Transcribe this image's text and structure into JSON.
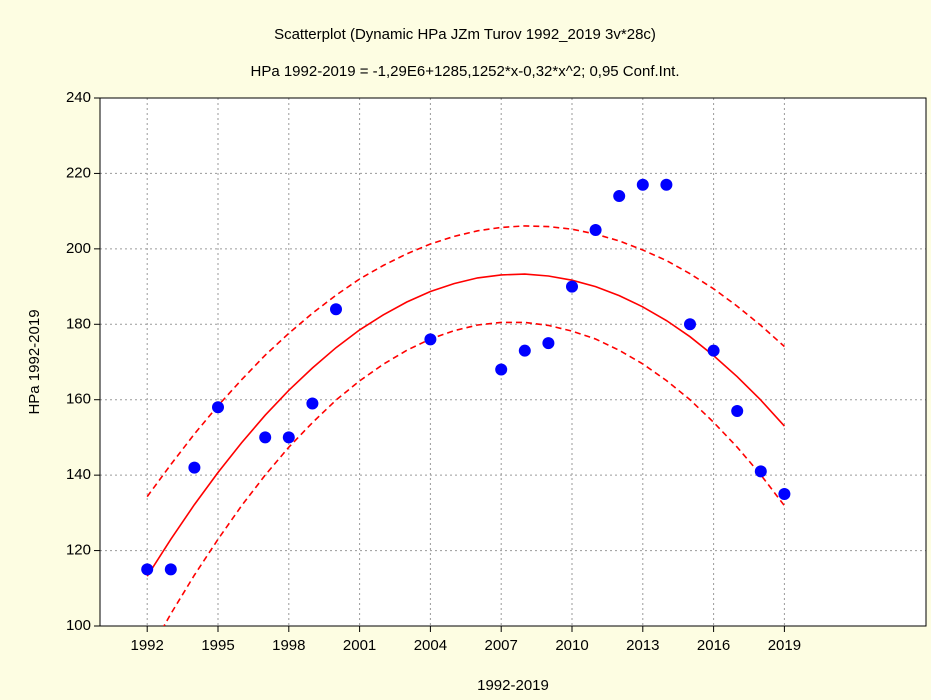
{
  "chart_data": {
    "type": "scatter",
    "title": "Scatterplot (Dynamic HPa JZm Turov 1992_2019 3v*28c)",
    "subtitle": "HPa 1992-2019 = -1,29E6+1285,1252*x-0,32*x^2; 0,95 Conf.Int.",
    "x_label": "1992-2019",
    "y_label": "HPa 1992-2019",
    "x": [
      1992,
      1993,
      1994,
      1995,
      1997,
      1998,
      1999,
      2000,
      2004,
      2007,
      2008,
      2009,
      2010,
      2011,
      2012,
      2013,
      2014,
      2015,
      2016,
      2017,
      2018,
      2019
    ],
    "values": [
      115,
      115,
      142,
      158,
      150,
      150,
      159,
      184,
      176,
      168,
      173,
      175,
      190,
      205,
      214,
      217,
      217,
      180,
      173,
      157,
      141,
      135
    ],
    "color": "#0000ff",
    "fit": {
      "color": "#ff0000",
      "x": [
        1992,
        1993,
        1994,
        1995,
        1996,
        1997,
        1998,
        1999,
        2000,
        2001,
        2002,
        2003,
        2004,
        2005,
        2006,
        2007,
        2008,
        2009,
        2010,
        2011,
        2012,
        2013,
        2014,
        2015,
        2016,
        2017,
        2018,
        2019
      ],
      "values": [
        113.2,
        123.0,
        132.2,
        140.7,
        148.6,
        155.9,
        162.5,
        168.4,
        173.8,
        178.5,
        182.5,
        185.9,
        188.7,
        190.8,
        192.3,
        193.1,
        193.3,
        192.8,
        191.7,
        190.0,
        187.6,
        184.6,
        181.0,
        176.7,
        171.7,
        166.1,
        159.9,
        153.0
      ],
      "upper": [
        134.3,
        142.8,
        150.9,
        158.4,
        165.3,
        171.8,
        177.6,
        182.9,
        187.7,
        192.0,
        195.6,
        198.7,
        201.3,
        203.3,
        204.8,
        205.7,
        206.1,
        205.9,
        205.2,
        203.9,
        202.1,
        199.7,
        196.9,
        193.4,
        189.4,
        184.8,
        179.7,
        174.1
      ],
      "lower": [
        92.1,
        103.2,
        113.5,
        123.0,
        131.9,
        140.0,
        147.4,
        153.9,
        159.9,
        165.0,
        169.4,
        173.1,
        176.1,
        178.3,
        179.8,
        180.5,
        180.5,
        179.7,
        178.2,
        176.1,
        173.1,
        169.5,
        165.1,
        160.0,
        154.0,
        147.4,
        140.1,
        131.9
      ]
    },
    "xlim": [
      1990,
      2025
    ],
    "ylim": [
      100,
      240
    ],
    "xticks": [
      1992,
      1995,
      1998,
      2001,
      2004,
      2007,
      2010,
      2013,
      2016,
      2019
    ],
    "yticks": [
      100,
      120,
      140,
      160,
      180,
      200,
      220,
      240
    ],
    "grid": true
  }
}
